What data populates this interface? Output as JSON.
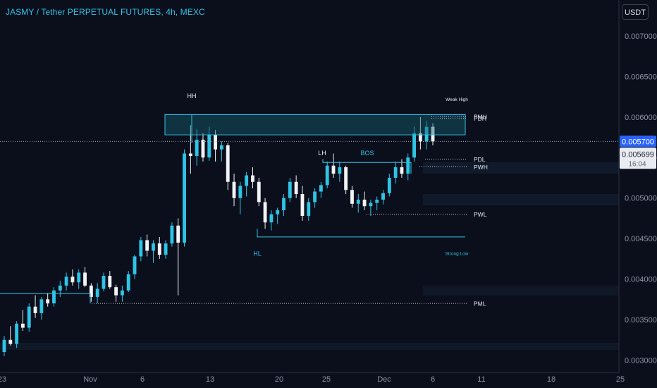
{
  "header": {
    "title": "JASMY / Tether PERPETUAL FUTURES, 4h, MEXC",
    "currency": "USDT"
  },
  "chart_data": {
    "type": "candlestick",
    "x_ticks": [
      "23",
      "Nov",
      "6",
      "13",
      "20",
      "25",
      "Dec",
      "6",
      "11",
      "18",
      "25"
    ],
    "y_ticks": [
      "0.007000",
      "0.006500",
      "0.006000",
      "0.005500",
      "0.005000",
      "0.004500",
      "0.004000",
      "0.003500",
      "0.003000"
    ],
    "ylim": [
      0.0029,
      0.0072
    ],
    "price_label": "0.005700",
    "last_price": "0.005699",
    "countdown": "16:04",
    "annotations": [
      {
        "text": "HH",
        "price": 0.00613
      },
      {
        "text": "LH",
        "price": 0.00553
      },
      {
        "text": "BOS",
        "price": 0.00553
      },
      {
        "text": "HL",
        "price": 0.00441
      },
      {
        "text": "Weak High",
        "price": 0.00613
      },
      {
        "text": "Strong Low",
        "price": 0.00442
      }
    ],
    "levels": [
      {
        "text": "PMH",
        "price": 0.006008
      },
      {
        "text": "PDH",
        "price": 0.005985
      },
      {
        "text": "PDL",
        "price": 0.005479
      },
      {
        "text": "PWH",
        "price": 0.005385
      },
      {
        "text": "PWL",
        "price": 0.0048
      },
      {
        "text": "PML",
        "price": 0.0037
      }
    ],
    "zone": {
      "top": 0.00603,
      "bottom": 0.00578
    },
    "candles": [
      [
        0.0031,
        0.0033,
        0.00305,
        0.00325
      ],
      [
        0.00325,
        0.00342,
        0.00318,
        0.0032
      ],
      [
        0.0032,
        0.00348,
        0.00315,
        0.00345
      ],
      [
        0.00345,
        0.00362,
        0.00336,
        0.0034
      ],
      [
        0.0034,
        0.0037,
        0.00335,
        0.00366
      ],
      [
        0.00366,
        0.0038,
        0.00352,
        0.00358
      ],
      [
        0.00358,
        0.00378,
        0.0035,
        0.00375
      ],
      [
        0.00375,
        0.00383,
        0.00366,
        0.0037
      ],
      [
        0.0037,
        0.0039,
        0.00366,
        0.00386
      ],
      [
        0.00386,
        0.00398,
        0.00378,
        0.00392
      ],
      [
        0.00392,
        0.00408,
        0.00386,
        0.00403
      ],
      [
        0.00403,
        0.00412,
        0.00392,
        0.00396
      ],
      [
        0.00396,
        0.00412,
        0.00388,
        0.00408
      ],
      [
        0.00408,
        0.00415,
        0.0039,
        0.00392
      ],
      [
        0.00392,
        0.00395,
        0.00372,
        0.00378
      ],
      [
        0.00378,
        0.00395,
        0.0037,
        0.00388
      ],
      [
        0.00388,
        0.00408,
        0.00385,
        0.00404
      ],
      [
        0.00404,
        0.0041,
        0.00388,
        0.0039
      ],
      [
        0.0039,
        0.00393,
        0.00372,
        0.0038
      ],
      [
        0.0038,
        0.00392,
        0.00372,
        0.00386
      ],
      [
        0.00386,
        0.0041,
        0.00384,
        0.00406
      ],
      [
        0.00406,
        0.0043,
        0.004,
        0.00428
      ],
      [
        0.00428,
        0.00452,
        0.00422,
        0.00448
      ],
      [
        0.00448,
        0.00455,
        0.00428,
        0.00435
      ],
      [
        0.00435,
        0.00448,
        0.0042,
        0.00444
      ],
      [
        0.00444,
        0.00452,
        0.00425,
        0.0043
      ],
      [
        0.0043,
        0.00448,
        0.00425,
        0.00444
      ],
      [
        0.00444,
        0.0047,
        0.0044,
        0.00466
      ],
      [
        0.00466,
        0.00475,
        0.0038,
        0.00445
      ],
      [
        0.00445,
        0.0056,
        0.0044,
        0.00555
      ],
      [
        0.00555,
        0.0059,
        0.0053,
        0.00552
      ],
      [
        0.00552,
        0.00585,
        0.0054,
        0.00572
      ],
      [
        0.00572,
        0.0058,
        0.00545,
        0.0055
      ],
      [
        0.0055,
        0.00588,
        0.00546,
        0.00578
      ],
      [
        0.00578,
        0.00584,
        0.00545,
        0.0056
      ],
      [
        0.0056,
        0.0057,
        0.00545,
        0.00565
      ],
      [
        0.00565,
        0.00568,
        0.0051,
        0.0052
      ],
      [
        0.0052,
        0.0053,
        0.0049,
        0.005
      ],
      [
        0.005,
        0.0052,
        0.0048,
        0.00515
      ],
      [
        0.00515,
        0.00532,
        0.00502,
        0.00528
      ],
      [
        0.00528,
        0.00538,
        0.00512,
        0.0052
      ],
      [
        0.0052,
        0.00525,
        0.0049,
        0.00495
      ],
      [
        0.00495,
        0.005,
        0.00462,
        0.0047
      ],
      [
        0.0047,
        0.00485,
        0.0046,
        0.0048
      ],
      [
        0.0048,
        0.00488,
        0.00468,
        0.00485
      ],
      [
        0.00485,
        0.00505,
        0.00478,
        0.005
      ],
      [
        0.005,
        0.00525,
        0.00495,
        0.0052
      ],
      [
        0.0052,
        0.00528,
        0.005,
        0.00505
      ],
      [
        0.00505,
        0.00515,
        0.00472,
        0.00478
      ],
      [
        0.00478,
        0.005,
        0.00472,
        0.00495
      ],
      [
        0.00495,
        0.00512,
        0.00488,
        0.00508
      ],
      [
        0.00508,
        0.0052,
        0.005,
        0.00516
      ],
      [
        0.00516,
        0.00545,
        0.00512,
        0.0054
      ],
      [
        0.0054,
        0.00555,
        0.00525,
        0.0053
      ],
      [
        0.0053,
        0.00545,
        0.0052,
        0.00538
      ],
      [
        0.00538,
        0.0054,
        0.00505,
        0.0051
      ],
      [
        0.0051,
        0.00515,
        0.00488,
        0.00493
      ],
      [
        0.00493,
        0.00505,
        0.00482,
        0.00498
      ],
      [
        0.00498,
        0.00508,
        0.00485,
        0.0049
      ],
      [
        0.0049,
        0.00498,
        0.00478,
        0.00494
      ],
      [
        0.00494,
        0.00502,
        0.00485,
        0.00498
      ],
      [
        0.00498,
        0.0051,
        0.00492,
        0.00506
      ],
      [
        0.00506,
        0.0053,
        0.00502,
        0.00525
      ],
      [
        0.00525,
        0.00545,
        0.00518,
        0.00538
      ],
      [
        0.00538,
        0.00548,
        0.00525,
        0.0053
      ],
      [
        0.0053,
        0.00555,
        0.00522,
        0.0055
      ],
      [
        0.0055,
        0.00588,
        0.00545,
        0.0058
      ],
      [
        0.0058,
        0.006,
        0.0056,
        0.0057
      ],
      [
        0.0057,
        0.00595,
        0.0056,
        0.00588
      ],
      [
        0.00588,
        0.00592,
        0.00565,
        0.0057
      ]
    ]
  }
}
